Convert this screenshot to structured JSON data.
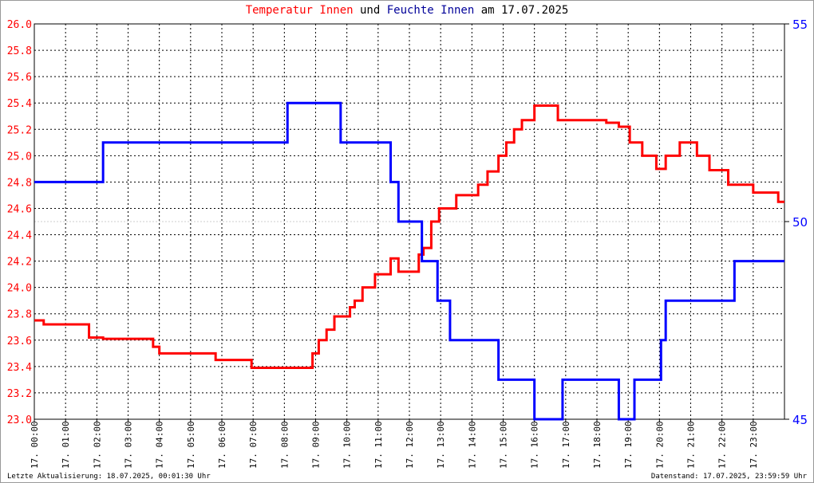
{
  "title": {
    "part1": "Temperatur Innen",
    "part2": "und",
    "part3": "Feuchte Innen",
    "part4": "am 17.07.2025"
  },
  "footer": {
    "left": "Letzte Aktualisierung: 18.07.2025, 00:01:30 Uhr",
    "right": "Datenstand: 17.07.2025, 23:59:59 Uhr"
  },
  "colors": {
    "temperature": "#ff0000",
    "humidity": "#0000ff",
    "grid": "#000000"
  },
  "chart_data": {
    "type": "line",
    "grid": true,
    "x_unit": "hour of day",
    "xlim": [
      0,
      24
    ],
    "x_tick_labels": [
      "17. 00:00",
      "17. 01:00",
      "17. 02:00",
      "17. 03:00",
      "17. 04:00",
      "17. 05:00",
      "17. 06:00",
      "17. 07:00",
      "17. 08:00",
      "17. 09:00",
      "17. 10:00",
      "17. 11:00",
      "17. 12:00",
      "17. 13:00",
      "17. 14:00",
      "17. 15:00",
      "17. 16:00",
      "17. 17:00",
      "17. 18:00",
      "17. 19:00",
      "17. 20:00",
      "17. 21:00",
      "17. 22:00",
      "17. 23:00"
    ],
    "y_left": {
      "lim": [
        23.0,
        26.0
      ],
      "ticks": [
        "26.0",
        "25.8",
        "25.6",
        "25.4",
        "25.2",
        "25.0",
        "24.8",
        "24.6",
        "24.4",
        "24.2",
        "24.0",
        "23.8",
        "23.6",
        "23.4",
        "23.2",
        "23.0"
      ]
    },
    "y_right": {
      "lim": [
        45,
        55
      ],
      "ticks": [
        "55",
        "50",
        "45"
      ]
    },
    "series": [
      {
        "axis": "left",
        "x": [
          0,
          0.3,
          1.75,
          2.2,
          3.8,
          4.0,
          5.8,
          6.95,
          8.9,
          9.1,
          9.35,
          9.6,
          10.1,
          10.25,
          10.5,
          10.9,
          11.4,
          11.65,
          12.3,
          12.45,
          12.7,
          12.95,
          13.5,
          14.2,
          14.5,
          14.85,
          15.1,
          15.35,
          15.6,
          16.0,
          16.75,
          18.3,
          18.7,
          19.05,
          19.45,
          19.9,
          20.2,
          20.65,
          21.2,
          21.6,
          22.2,
          23.0,
          23.8
        ],
        "y": [
          23.75,
          23.72,
          23.62,
          23.61,
          23.55,
          23.5,
          23.45,
          23.39,
          23.5,
          23.6,
          23.68,
          23.78,
          23.85,
          23.9,
          24.0,
          24.1,
          24.22,
          24.12,
          24.25,
          24.3,
          24.5,
          24.6,
          24.7,
          24.78,
          24.88,
          25.0,
          25.1,
          25.2,
          25.27,
          25.38,
          25.27,
          25.25,
          25.22,
          25.1,
          25.0,
          24.9,
          25.0,
          25.1,
          25.0,
          24.89,
          24.78,
          24.72,
          24.65
        ]
      },
      {
        "axis": "right",
        "x": [
          0,
          2.2,
          8.1,
          9.8,
          11.4,
          11.65,
          12.4,
          12.9,
          13.3,
          14.85,
          16.0,
          16.9,
          18.7,
          19.2,
          20.05,
          20.2,
          22.4
        ],
        "y": [
          51,
          52,
          53,
          52,
          51,
          50,
          49,
          48,
          47,
          46,
          45,
          46,
          45,
          46,
          47,
          48,
          49
        ]
      }
    ]
  }
}
